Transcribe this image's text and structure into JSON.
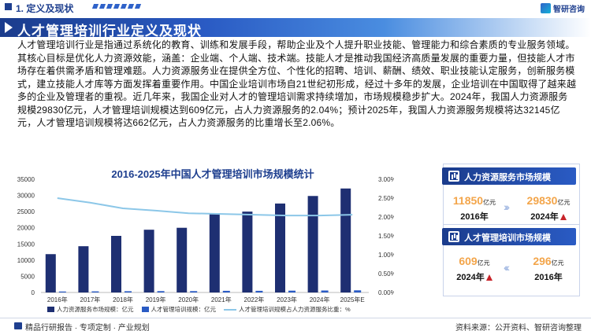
{
  "header": {
    "section_title": "1. 定义及现状",
    "brand": "智研咨询"
  },
  "banner": {
    "title": "人才管理培训行业定义及现状"
  },
  "body_text": "人才管理培训行业是指通过系统化的教育、训练和发展手段，帮助企业及个人提升职业技能、管理能力和综合素质的专业服务领域。其核心目标是优化人力资源效能，涵盖：企业端、个人端、技术端。技能人才是推动我国经济高质量发展的重要力量，但技能人才市场存在着供需矛盾和管理难题。人力资源服务业在提供全方位、个性化的招聘、培训、薪酬、绩效、职业技能认定服务，创新服务模式，建立技能人才库等方面发挥着重要作用。中国企业培训市场自21世纪初形成，经过十多年的发展，企业培训在中国取得了越来越多的企业及管理者的重视。近几年来，我国企业对人才的管理培训需求持续增加，市场规模稳步扩大。2024年，我国人力资源服务规模29830亿元，人才管理培训规模达到609亿元，占人力资源服务的2.04%；预计2025年，我国人力资源服务规模将达32145亿元，人才管理培训规模将达662亿元，占人力资源服务的比重增长至2.06%。",
  "chart_data": {
    "type": "bar",
    "title": "2016-2025年中国人才管理培训市场规模统计",
    "categories": [
      "2016年",
      "2017年",
      "2018年",
      "2019年",
      "2020年",
      "2021年",
      "2022年",
      "2023年",
      "2024年",
      "2025年E"
    ],
    "series": [
      {
        "name": "人力资源服务市场规模：亿元",
        "type": "bar",
        "axis": "left",
        "color": "#1e2f72",
        "values": [
          11850,
          14300,
          17500,
          19400,
          20000,
          24500,
          25000,
          27500,
          29830,
          32145
        ]
      },
      {
        "name": "人才管理培训规模：亿元",
        "type": "bar",
        "axis": "left",
        "color": "#2a5bc4",
        "values": [
          296,
          340,
          390,
          420,
          420,
          510,
          515,
          560,
          609,
          662
        ]
      },
      {
        "name": "人才管理培训规模占人力资源服务比重：%",
        "type": "line",
        "axis": "right",
        "color": "#8cc7e8",
        "values": [
          2.5,
          2.38,
          2.23,
          2.17,
          2.1,
          2.08,
          2.06,
          2.04,
          2.04,
          2.06
        ]
      }
    ],
    "y_left": {
      "min": 0,
      "max": 35000,
      "ticks": [
        0,
        5000,
        10000,
        15000,
        20000,
        25000,
        30000,
        35000
      ]
    },
    "y_right": {
      "min": 0,
      "max": 3.0,
      "ticks": [
        "0.00%",
        "0.50%",
        "1.00%",
        "1.50%",
        "2.00%",
        "2.50%",
        "3.00%"
      ]
    },
    "grid": false,
    "legend_position": "bottom"
  },
  "cards": [
    {
      "title": "人力资源服务市场规模",
      "left_value": "11850",
      "left_unit": "亿元",
      "left_year": "2016年",
      "right_value": "29830",
      "right_unit": "亿元",
      "right_year": "2024年"
    },
    {
      "title": "人才管理培训市场规模",
      "left_value": "609",
      "left_unit": "亿元",
      "left_year": "2024年",
      "right_value": "296",
      "right_unit": "亿元",
      "right_year": "2016年"
    }
  ],
  "footer": {
    "left": "精品行研报告 · 专项定制 · 产业规划",
    "right": "资料来源：公开资料、智研咨询整理"
  },
  "colors": {
    "brand": "#1e3f8f",
    "accent": "#f3a54a",
    "up_arrow": "#c8242a"
  }
}
